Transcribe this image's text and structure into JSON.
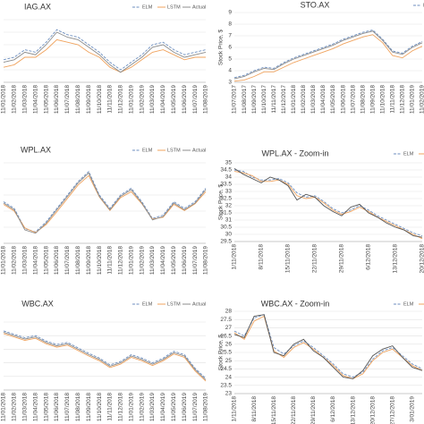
{
  "chart_data": [
    {
      "type": "line",
      "title": "IAG.AX",
      "legend": "top-right",
      "grid": true,
      "categories": [
        "11/01/2018",
        "11/02/2018",
        "11/03/2018",
        "11/04/2018",
        "11/05/2018",
        "11/06/2018",
        "11/07/2018",
        "11/08/2018",
        "11/09/2018",
        "11/10/2018",
        "11/11/2018",
        "11/12/2018",
        "11/01/2019",
        "11/02/2019",
        "11/03/2019",
        "11/04/2019",
        "11/05/2019",
        "11/06/2019",
        "11/07/2019",
        "11/08/2019"
      ],
      "series": [
        {
          "name": "ELM",
          "color": "#6c8ebf",
          "dash": true,
          "values": [
            7.4,
            7.5,
            7.8,
            7.7,
            8.1,
            8.6,
            8.4,
            8.3,
            8.0,
            7.7,
            7.3,
            7.0,
            7.3,
            7.6,
            8.0,
            8.1,
            7.8,
            7.6,
            7.7,
            7.8
          ]
        },
        {
          "name": "LSTM",
          "color": "#f0a35e",
          "values": [
            7.1,
            7.2,
            7.5,
            7.5,
            7.8,
            8.2,
            8.1,
            8.0,
            7.7,
            7.5,
            7.1,
            6.9,
            7.1,
            7.4,
            7.7,
            7.8,
            7.6,
            7.4,
            7.5,
            7.5
          ]
        },
        {
          "name": "Actual",
          "color": "#8c8c8c",
          "values": [
            7.3,
            7.4,
            7.7,
            7.6,
            8.0,
            8.5,
            8.3,
            8.2,
            7.9,
            7.6,
            7.2,
            6.9,
            7.2,
            7.5,
            7.9,
            8.0,
            7.7,
            7.5,
            7.6,
            7.7
          ]
        }
      ],
      "ylim": [
        6.5,
        9
      ]
    },
    {
      "type": "line",
      "title": "STO.AX",
      "legend": "top-right",
      "grid": true,
      "y_label": "Stock Price, $",
      "categories": [
        "11/07/2017",
        "11/08/2017",
        "11/09/2017",
        "11/10/2017",
        "11/11/2017",
        "11/12/2017",
        "11/01/2018",
        "11/02/2018",
        "11/03/2018",
        "11/04/2018",
        "11/05/2018",
        "11/06/2018",
        "11/07/2018",
        "11/08/2018",
        "11/09/2018",
        "11/10/2018",
        "11/11/2018",
        "11/12/2018",
        "11/01/2019",
        "11/02/2019"
      ],
      "series": [
        {
          "name": "ELM",
          "color": "#6c8ebf",
          "dash": true,
          "values": [
            3.4,
            3.6,
            4.0,
            4.3,
            4.2,
            4.7,
            5.1,
            5.4,
            5.7,
            6.0,
            6.3,
            6.7,
            7.0,
            7.3,
            7.5,
            6.7,
            5.7,
            5.5,
            6.1,
            6.5
          ]
        },
        {
          "name": "LSTM",
          "color": "#f0a35e",
          "values": [
            3.1,
            3.2,
            3.5,
            3.9,
            3.9,
            4.3,
            4.7,
            5.0,
            5.3,
            5.6,
            5.9,
            6.3,
            6.6,
            6.9,
            7.1,
            6.4,
            5.3,
            5.1,
            5.7,
            6.1
          ]
        },
        {
          "name": "Actual",
          "color": "#8c8c8c",
          "values": [
            3.3,
            3.5,
            3.9,
            4.2,
            4.1,
            4.6,
            5.0,
            5.3,
            5.6,
            5.9,
            6.2,
            6.6,
            6.9,
            7.2,
            7.4,
            6.6,
            5.6,
            5.4,
            6.0,
            6.4
          ]
        }
      ],
      "ylim": [
        3,
        9
      ],
      "yticks": [
        3,
        4,
        5,
        6,
        7,
        8,
        9
      ]
    },
    {
      "type": "line",
      "title": "WPL.AX",
      "legend": "top-right",
      "grid": true,
      "categories": [
        "11/01/2018",
        "11/02/2018",
        "11/03/2018",
        "11/04/2018",
        "11/05/2018",
        "11/06/2018",
        "11/07/2018",
        "11/08/2018",
        "11/09/2018",
        "11/10/2018",
        "11/11/2018",
        "11/12/2018",
        "11/01/2019",
        "11/02/2019",
        "11/03/2019",
        "11/04/2019",
        "11/05/2019",
        "11/06/2019",
        "11/07/2019",
        "11/08/2019"
      ],
      "series": [
        {
          "name": "ELM",
          "color": "#6c8ebf",
          "dash": true,
          "values": [
            30.2,
            29.2,
            26.2,
            25.7,
            27.2,
            29.2,
            31.2,
            33.2,
            34.7,
            31.2,
            29.2,
            31.2,
            32.2,
            30.2,
            27.7,
            28.2,
            30.2,
            29.2,
            30.2,
            32.2
          ]
        },
        {
          "name": "LSTM",
          "color": "#f0a35e",
          "values": [
            29.8,
            28.8,
            26.3,
            25.6,
            26.8,
            28.7,
            30.7,
            32.7,
            34.1,
            30.9,
            28.9,
            30.8,
            31.7,
            29.9,
            27.6,
            27.9,
            29.8,
            28.9,
            29.9,
            31.7
          ]
        },
        {
          "name": "Actual",
          "color": "#8c8c8c",
          "values": [
            30,
            29,
            26,
            25.5,
            27,
            29,
            31,
            33,
            34.5,
            31,
            29,
            31,
            32,
            30,
            27.5,
            28,
            30,
            29,
            30,
            32
          ]
        }
      ],
      "ylim": [
        24,
        36
      ]
    },
    {
      "type": "line",
      "title": "WPL.AX - Zoom-in",
      "legend": "top-right",
      "grid": true,
      "y_label": "Stock Price, $",
      "categories": [
        "1/11/2018",
        null,
        null,
        "8/11/2018",
        null,
        null,
        "15/11/2018",
        null,
        null,
        "22/11/2018",
        null,
        null,
        "29/11/2018",
        null,
        null,
        "6/12/2018",
        null,
        null,
        "13/12/2018",
        null,
        null,
        "20/12/2018"
      ],
      "series": [
        {
          "name": "ELM",
          "color": "#6c8ebf",
          "dash": true,
          "values": [
            34.5,
            34.4,
            34.0,
            33.8,
            33.8,
            33.9,
            33.6,
            32.9,
            32.6,
            32.7,
            32.3,
            31.8,
            31.5,
            31.7,
            32.0,
            31.7,
            31.3,
            31.0,
            30.7,
            30.4,
            30.1,
            29.9
          ]
        },
        {
          "name": "LSTM",
          "color": "#f0a35e",
          "values": [
            34.4,
            34.3,
            34.1,
            33.7,
            33.7,
            33.8,
            33.5,
            32.7,
            32.5,
            32.6,
            32.2,
            31.7,
            31.4,
            31.6,
            31.9,
            31.6,
            31.2,
            30.9,
            30.6,
            30.3,
            30.0,
            29.7
          ]
        },
        {
          "name": "Actual",
          "color": "#555555",
          "values": [
            34.6,
            34.2,
            33.9,
            33.6,
            34.0,
            33.8,
            33.4,
            32.4,
            32.8,
            32.6,
            32.0,
            31.6,
            31.3,
            31.9,
            32.1,
            31.5,
            31.2,
            30.8,
            30.5,
            30.3,
            29.9,
            29.8
          ]
        }
      ],
      "ylim": [
        29.5,
        35
      ],
      "yticks": [
        29.5,
        30,
        30.5,
        31,
        31.5,
        32,
        32.5,
        33,
        33.5,
        34,
        34.5,
        35
      ]
    },
    {
      "type": "line",
      "title": "WBC.AX",
      "legend": "top-right",
      "grid": true,
      "categories": [
        "11/01/2018",
        "11/02/2018",
        "11/03/2018",
        "11/04/2018",
        "11/05/2018",
        "11/06/2018",
        "11/07/2018",
        "11/08/2018",
        "11/09/2018",
        "11/10/2018",
        "11/11/2018",
        "11/12/2018",
        "11/01/2019",
        "11/02/2019",
        "11/03/2019",
        "11/04/2019",
        "11/05/2019",
        "11/06/2019",
        "11/07/2019",
        "11/08/2019"
      ],
      "series": [
        {
          "name": "ELM",
          "color": "#6c8ebf",
          "dash": true,
          "values": [
            30.7,
            30.2,
            29.7,
            30.0,
            29.2,
            28.7,
            29.0,
            28.2,
            27.4,
            26.7,
            25.7,
            26.2,
            27.2,
            26.7,
            26.0,
            26.7,
            27.7,
            27.2,
            25.2,
            23.7
          ]
        },
        {
          "name": "LSTM",
          "color": "#f0a35e",
          "values": [
            30.3,
            29.8,
            29.3,
            29.6,
            28.8,
            28.3,
            28.6,
            27.8,
            27.0,
            26.3,
            25.3,
            25.8,
            26.8,
            26.3,
            25.6,
            26.3,
            27.3,
            26.8,
            24.8,
            23.3
          ]
        },
        {
          "name": "Actual",
          "color": "#8c8c8c",
          "values": [
            30.5,
            30,
            29.5,
            29.8,
            29,
            28.5,
            28.8,
            28,
            27.2,
            26.5,
            25.5,
            26,
            27,
            26.5,
            25.8,
            26.5,
            27.5,
            27,
            25,
            23.5
          ]
        }
      ],
      "ylim": [
        22,
        32
      ]
    },
    {
      "type": "line",
      "title": "WBC.AX - Zoom-in",
      "legend": "top-right",
      "grid": true,
      "y_label": "Stock Price, $",
      "categories": [
        "1/11/2018",
        null,
        "8/11/2018",
        null,
        "15/11/2018",
        null,
        "22/11/2018",
        null,
        "29/11/2018",
        null,
        "6/12/2018",
        null,
        "13/12/2018",
        null,
        "20/12/2018",
        null,
        "27/12/2018",
        null,
        "3/01/2019",
        null
      ],
      "series": [
        {
          "name": "ELM",
          "color": "#6c8ebf",
          "dash": true,
          "values": [
            26.8,
            26.5,
            27.6,
            27.8,
            25.8,
            25.4,
            25.9,
            26.2,
            25.8,
            25.3,
            24.8,
            24.2,
            24.0,
            24.3,
            25.1,
            25.6,
            25.8,
            25.3,
            24.8,
            24.5
          ]
        },
        {
          "name": "LSTM",
          "color": "#f0a35e",
          "values": [
            26.7,
            26.3,
            27.4,
            27.7,
            25.6,
            25.2,
            25.8,
            26.1,
            25.7,
            25.2,
            24.7,
            24.1,
            23.9,
            24.2,
            25.0,
            25.5,
            25.7,
            25.2,
            24.7,
            24.4
          ]
        },
        {
          "name": "Actual",
          "color": "#555555",
          "values": [
            26.6,
            26.4,
            27.7,
            27.8,
            25.5,
            25.3,
            26.0,
            26.3,
            25.6,
            25.2,
            24.6,
            24.0,
            23.9,
            24.4,
            25.3,
            25.7,
            25.9,
            25.2,
            24.6,
            24.4
          ]
        }
      ],
      "ylim": [
        23,
        28
      ],
      "yticks": [
        23,
        23.5,
        24,
        24.5,
        25,
        25.5,
        26,
        26.5,
        27,
        27.5,
        28
      ]
    }
  ]
}
